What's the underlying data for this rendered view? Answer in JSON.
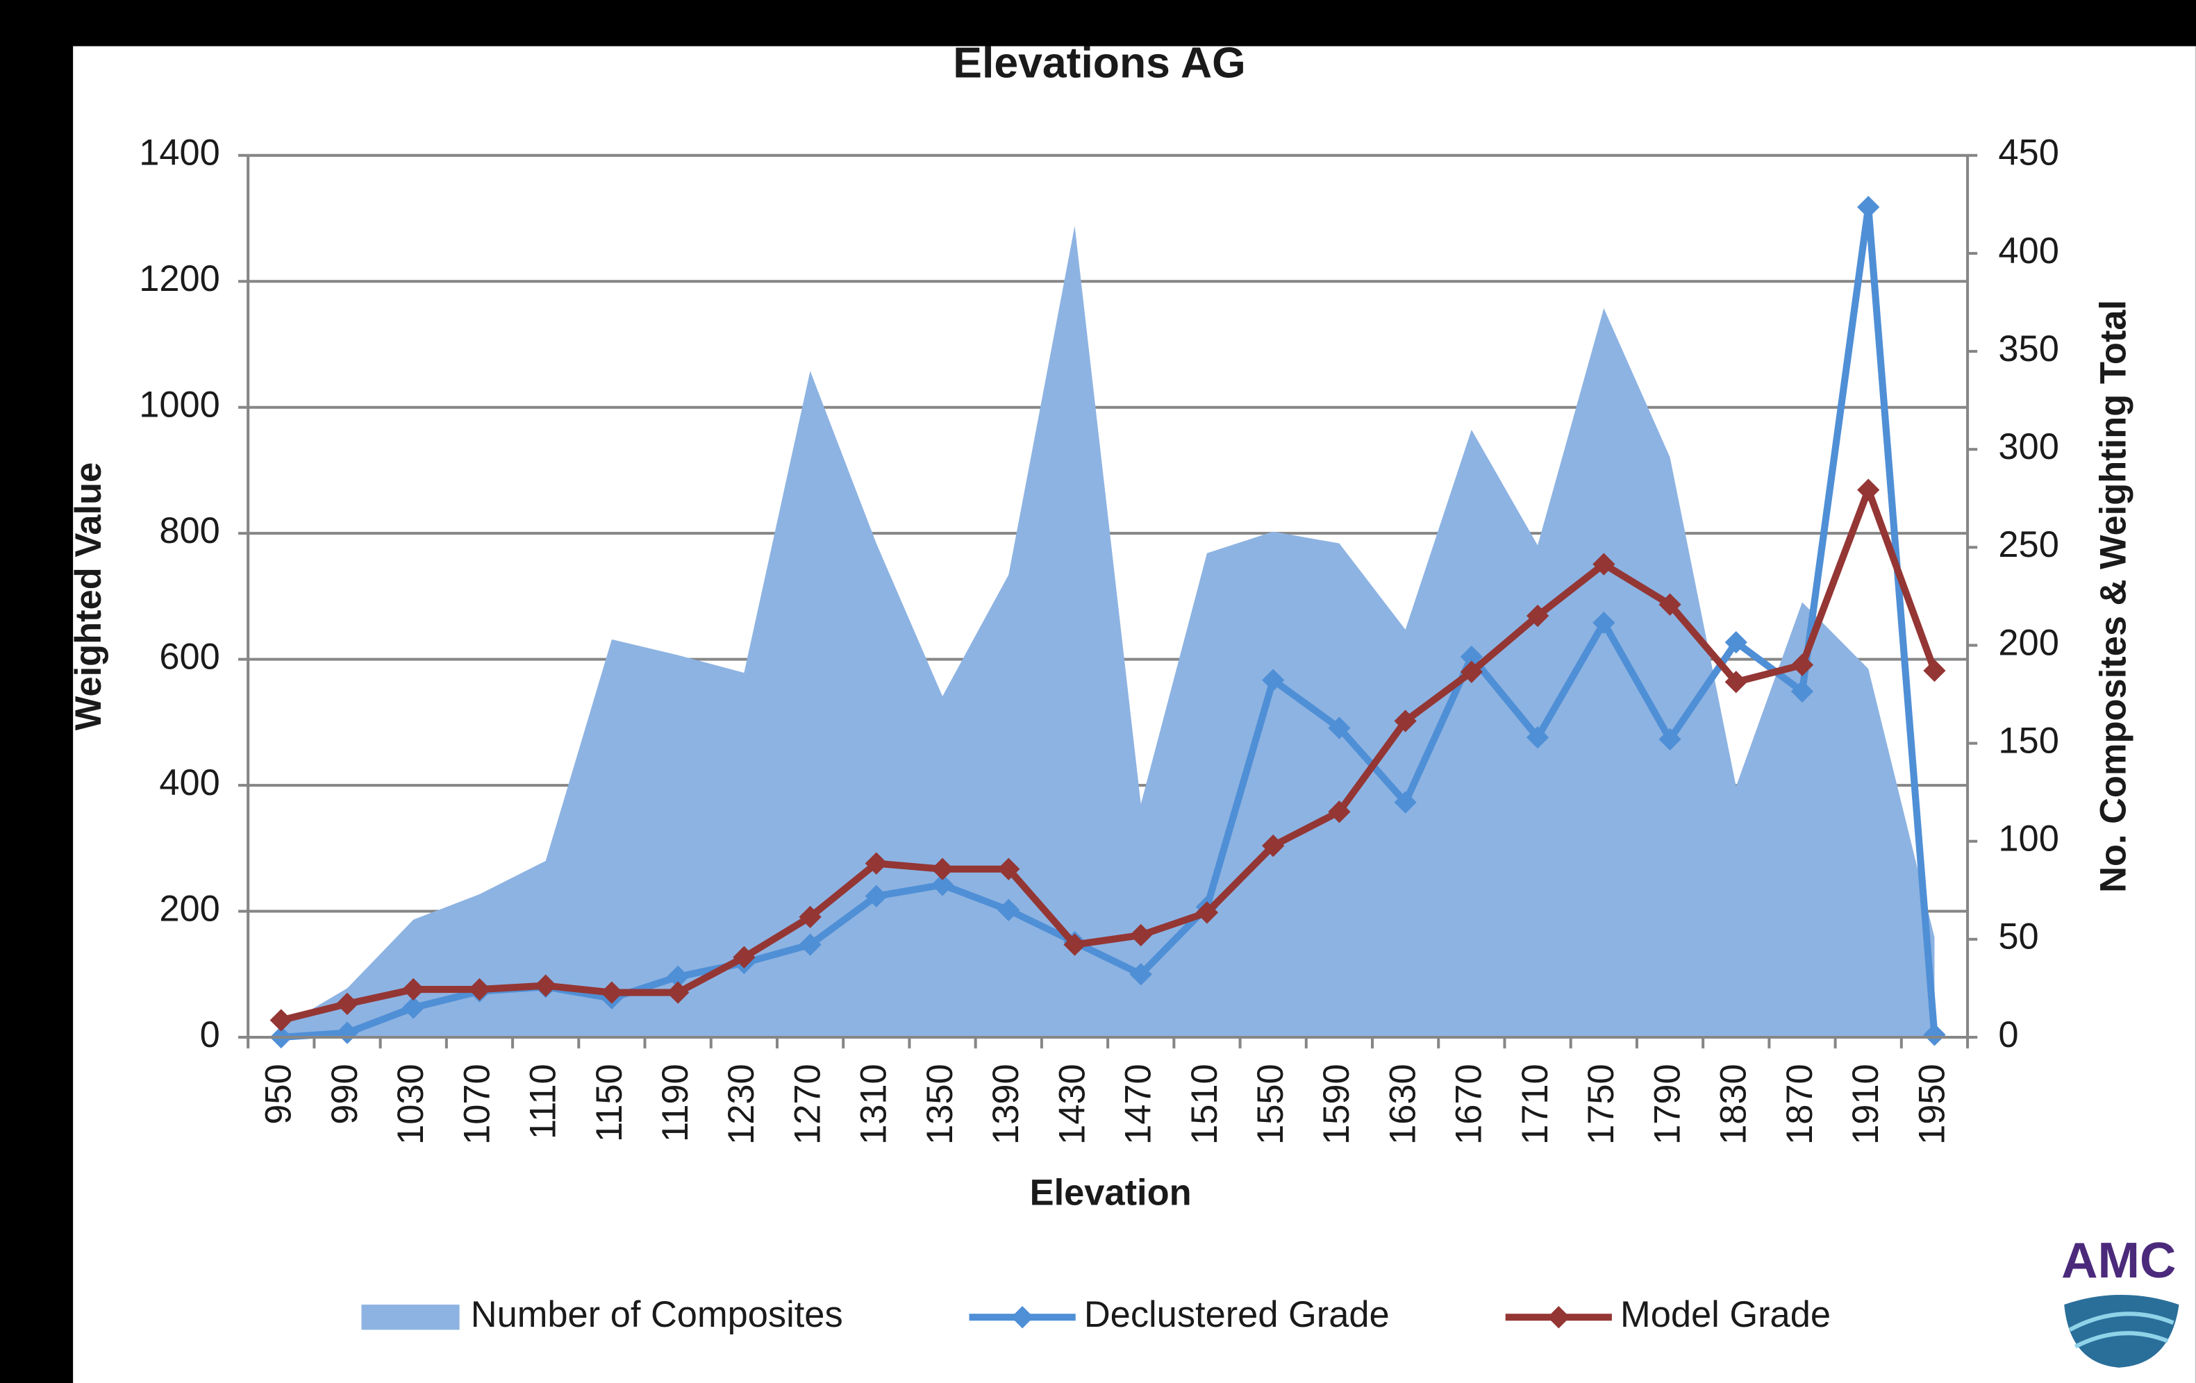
{
  "chart_data": {
    "type": "combo",
    "title": "Elevations AG",
    "x_label": "Elevation",
    "y_label": "Weighted Value",
    "y2_label": "No. Composites  & Weighting Total",
    "categories": [
      "950",
      "990",
      "1030",
      "1070",
      "1110",
      "1150",
      "1190",
      "1230",
      "1270",
      "1310",
      "1350",
      "1390",
      "1430",
      "1470",
      "1510",
      "1550",
      "1590",
      "1630",
      "1670",
      "1710",
      "1750",
      "1790",
      "1830",
      "1870",
      "1910",
      "1950"
    ],
    "series": [
      {
        "name": "Number of Composites",
        "type": "area",
        "axis": "y2",
        "color": "#8db3e2",
        "values": [
          5,
          25,
          60,
          73,
          90,
          203,
          195,
          186,
          340,
          252,
          174,
          236,
          414,
          119,
          247,
          258,
          252,
          208,
          310,
          251,
          372,
          296,
          128,
          222,
          188,
          51
        ]
      },
      {
        "name": "Declustered Grade",
        "type": "line",
        "color": "#4f8fd6",
        "values": [
          0,
          7,
          47,
          73,
          80,
          62,
          96,
          118,
          147,
          224,
          242,
          202,
          151,
          100,
          207,
          567,
          491,
          373,
          604,
          476,
          658,
          473,
          627,
          549,
          1318,
          4
        ]
      },
      {
        "name": "Model Grade",
        "type": "line",
        "color": "#943634",
        "values": [
          27,
          53,
          76,
          76,
          82,
          71,
          71,
          127,
          191,
          276,
          267,
          267,
          147,
          162,
          198,
          304,
          358,
          502,
          580,
          669,
          751,
          687,
          564,
          591,
          869,
          582
        ]
      }
    ],
    "ylim": [
      0,
      1400
    ],
    "yticks": [
      0,
      200,
      400,
      600,
      800,
      1000,
      1200,
      1400
    ],
    "y2lim": [
      0,
      450
    ],
    "y2ticks": [
      0,
      50,
      100,
      150,
      200,
      250,
      300,
      350,
      400,
      450
    ],
    "grid": true,
    "legend": "bottom"
  },
  "logo": {
    "text": "AMC"
  }
}
